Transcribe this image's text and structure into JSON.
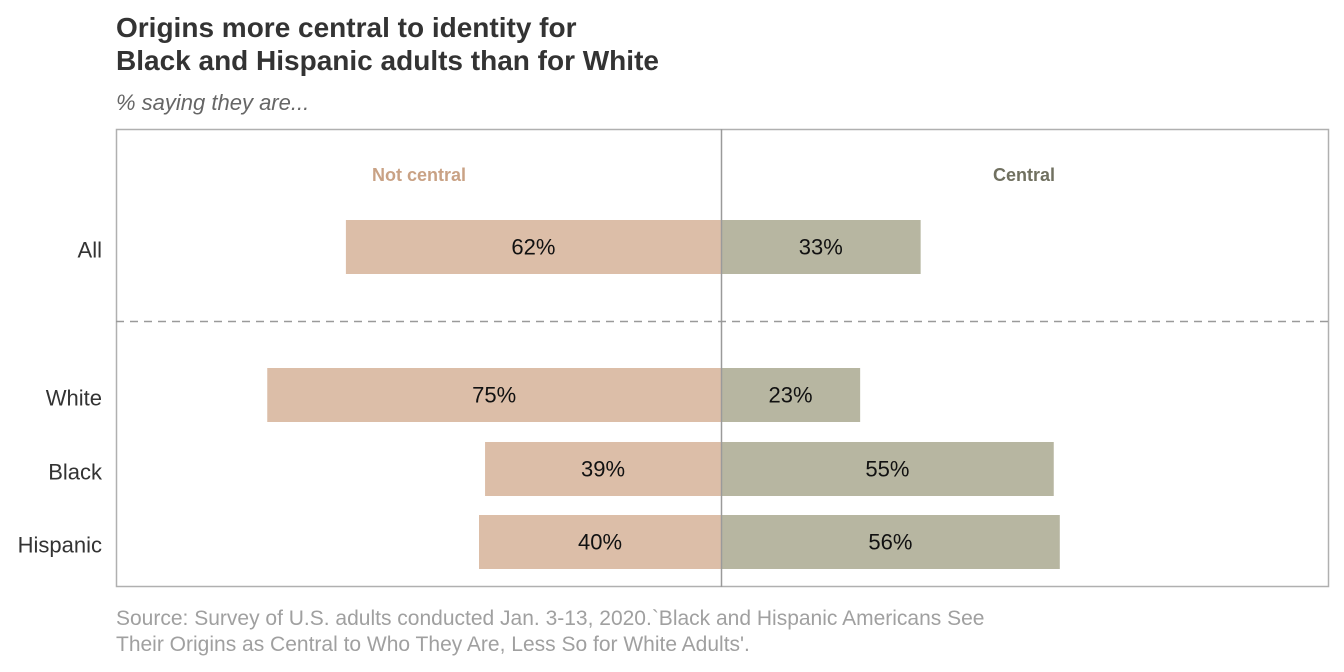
{
  "title_lines": [
    "Origins more central to identity for",
    "Black and Hispanic adults than for White"
  ],
  "subtitle": "% saying they are...",
  "source_lines": [
    "Source: Survey of U.S. adults conducted Jan. 3-13, 2020.`Black and Hispanic Americans See",
    "Their Origins as Central to Who They Are, Less So for White Adults'."
  ],
  "colors": {
    "not_central": "#dcbea8",
    "central": "#b7b6a1",
    "not_central_label": "#c9a285",
    "central_label": "#707060"
  },
  "chart_data": {
    "type": "bar",
    "orientation": "horizontal-diverging",
    "categories": [
      "All",
      "White",
      "Black",
      "Hispanic"
    ],
    "series": [
      {
        "name": "Not central",
        "values": [
          62,
          75,
          39,
          40
        ]
      },
      {
        "name": "Central",
        "values": [
          33,
          23,
          55,
          56
        ]
      }
    ],
    "value_labels": {
      "Not central": [
        "62%",
        "75%",
        "39%",
        "40%"
      ],
      "Central": [
        "33%",
        "23%",
        "55%",
        "56%"
      ]
    },
    "xlim": [
      -100,
      100
    ],
    "grid": false,
    "legend": "top, as column headers"
  }
}
